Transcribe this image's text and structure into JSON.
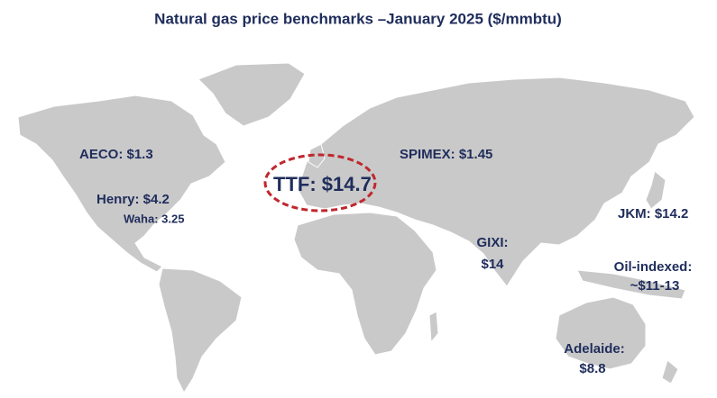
{
  "title": "Natural gas price benchmarks –January 2025 ($/mmbtu)",
  "labels": [
    [
      "AECO: $1.3"
    ],
    [
      "Henry: $4.2"
    ],
    [
      "Waha: 3.25"
    ],
    [
      "TTF: $14.7"
    ],
    [
      "SPIMEX: $1.45"
    ],
    [
      "JKM: $14.2"
    ],
    [
      "GIXI:",
      "$14"
    ],
    [
      "Oil-indexed:",
      "~$11-13"
    ],
    [
      "Adelaide:",
      "$8.8"
    ]
  ]
}
